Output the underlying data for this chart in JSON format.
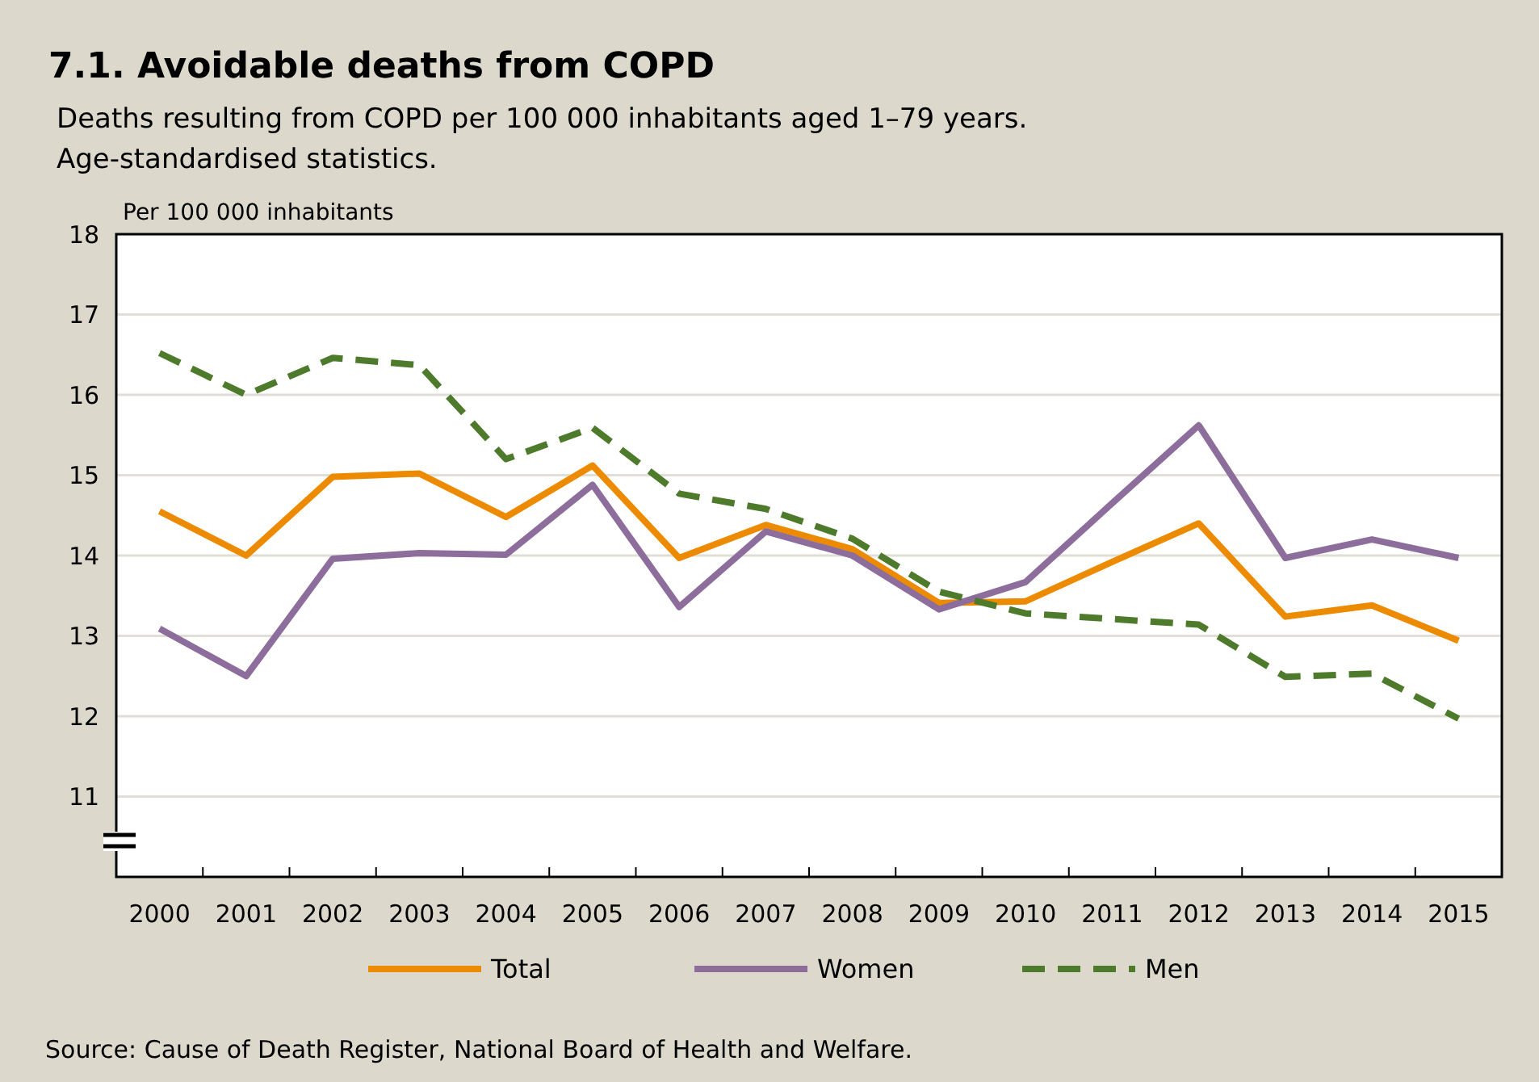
{
  "chart_data": {
    "type": "line",
    "title": "7.1. Avoidable deaths from COPD",
    "subtitle": "Deaths resulting from COPD per 100 000 inhabitants aged 1–79 years.\nAge-standardised statistics.",
    "ylabel": "Per 100 000 inhabitants",
    "categories": [
      "2000",
      "2001",
      "2002",
      "2003",
      "2004",
      "2005",
      "2006",
      "2007",
      "2008",
      "2009",
      "2010",
      "2011",
      "2012",
      "2013",
      "2014",
      "2015"
    ],
    "series": [
      {
        "name": "Total",
        "color": "#ed8b00",
        "line_style": "solid",
        "values": [
          14.55,
          14.0,
          14.98,
          15.02,
          14.48,
          15.12,
          13.97,
          14.38,
          14.08,
          13.41,
          13.43,
          13.92,
          14.4,
          13.24,
          13.38,
          12.94
        ]
      },
      {
        "name": "Women",
        "color": "#8c6d9b",
        "line_style": "solid",
        "values": [
          13.09,
          12.5,
          13.96,
          14.03,
          14.01,
          14.88,
          13.36,
          14.3,
          14.0,
          13.33,
          13.67,
          14.65,
          15.62,
          13.97,
          14.2,
          13.97
        ]
      },
      {
        "name": "Men",
        "color": "#4e7a2c",
        "line_style": "dashed",
        "values": [
          16.52,
          16.0,
          16.46,
          16.37,
          15.2,
          15.59,
          14.77,
          14.58,
          14.21,
          13.55,
          13.28,
          13.21,
          13.14,
          12.49,
          12.53,
          11.97
        ]
      }
    ],
    "ylim": [
      10,
      18
    ],
    "yticks": [
      11,
      12,
      13,
      14,
      15,
      16,
      17,
      18
    ],
    "grid": "y",
    "legend": "bottom",
    "marker": "none",
    "annotations": [
      "Source: Cause of Death Register, National Board of Health and Welfare."
    ]
  }
}
